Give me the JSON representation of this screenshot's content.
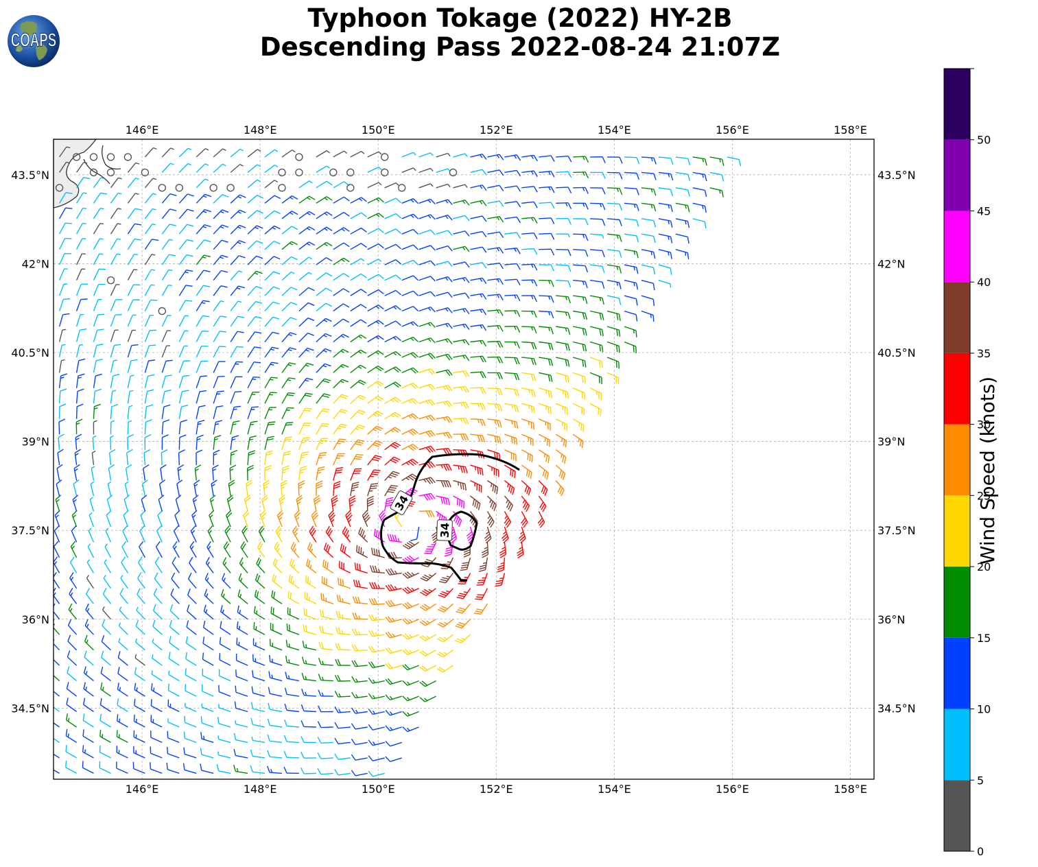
{
  "header": {
    "title_line1": "Typhoon Tokage (2022) HY-2B",
    "title_line2": "Descending Pass 2022-08-24 21:07Z",
    "logo_text": "COAPS"
  },
  "map": {
    "lon_range": [
      144.5,
      158.4
    ],
    "lat_range": [
      33.3,
      44.1
    ],
    "lon_ticks": [
      "146°E",
      "148°E",
      "150°E",
      "152°E",
      "154°E",
      "156°E",
      "158°E"
    ],
    "lat_ticks": [
      "43.5°N",
      "42°N",
      "40.5°N",
      "39°N",
      "37.5°N",
      "36°N",
      "34.5°N"
    ],
    "lon_tick_values": [
      146,
      148,
      150,
      152,
      154,
      156,
      158
    ],
    "lat_tick_values": [
      43.5,
      42,
      40.5,
      39,
      37.5,
      36,
      34.5
    ],
    "storm_center": {
      "lon": 150.6,
      "lat": 37.6
    },
    "contour_label": "34",
    "contour_labels": [
      "34",
      "34"
    ],
    "swath_edge": {
      "north": [
        155.9,
        43.7
      ],
      "south": [
        150.3,
        33.3
      ]
    },
    "coastline": "Hokkaido coast (top-left)"
  },
  "colorbar": {
    "label": "Wind Speed (knots)",
    "tick_labels": [
      "0",
      "5",
      "10",
      "15",
      "20",
      "25",
      "30",
      "35",
      "40",
      "45",
      "50"
    ],
    "bins": [
      {
        "from": 0,
        "to": 5,
        "color": "#555555"
      },
      {
        "from": 5,
        "to": 10,
        "color": "#00bfff"
      },
      {
        "from": 10,
        "to": 15,
        "color": "#0040ff"
      },
      {
        "from": 15,
        "to": 20,
        "color": "#008c00"
      },
      {
        "from": 20,
        "to": 25,
        "color": "#ffd700"
      },
      {
        "from": 25,
        "to": 30,
        "color": "#ff8c00"
      },
      {
        "from": 30,
        "to": 35,
        "color": "#ff0000"
      },
      {
        "from": 35,
        "to": 40,
        "color": "#7f3c28"
      },
      {
        "from": 40,
        "to": 45,
        "color": "#ff00ff"
      },
      {
        "from": 45,
        "to": 50,
        "color": "#8000b0"
      },
      {
        "from": 50,
        "to": 55,
        "color": "#2b0060"
      }
    ]
  }
}
